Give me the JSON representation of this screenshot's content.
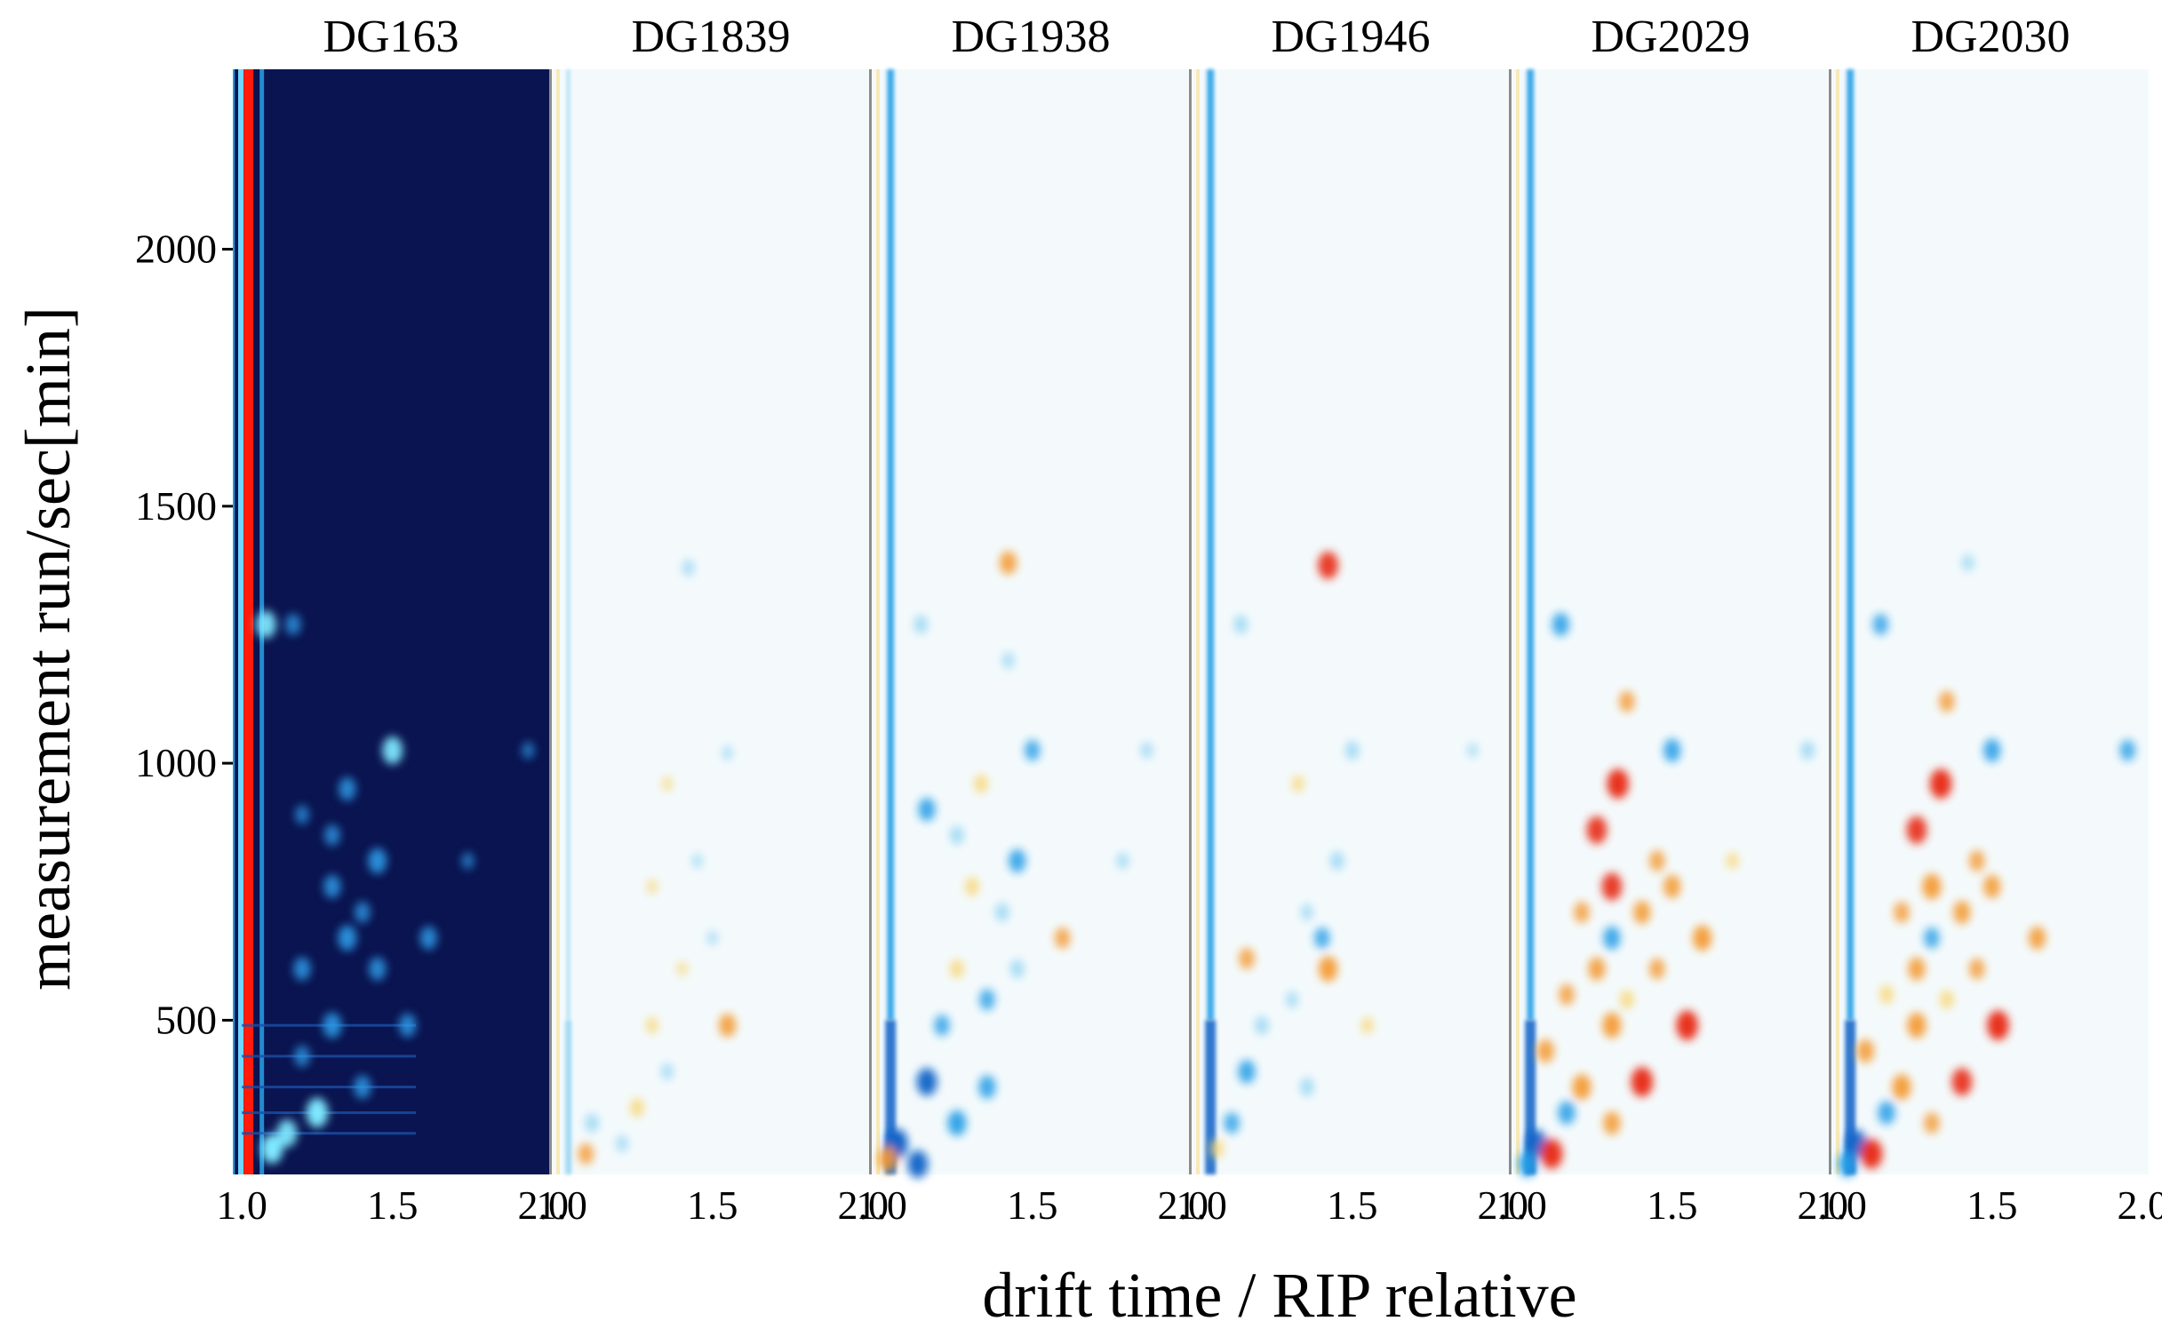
{
  "chart_data": {
    "type": "heatmap",
    "title": "",
    "xlabel": "drift time / RIP relative",
    "ylabel": "measurement run/sec[min]",
    "xlim": [
      0.97,
      2.02
    ],
    "ylim": [
      200,
      2350
    ],
    "x_ticks": [
      1.0,
      1.5,
      2.0
    ],
    "x_tick_labels": [
      "1.0",
      "1.5",
      "2.0"
    ],
    "y_ticks": [
      500,
      1000,
      1500,
      2000
    ],
    "y_tick_labels": [
      "500",
      "1000",
      "1500",
      "2000"
    ],
    "grid": false,
    "legend": "none",
    "reference_panel": "DG163",
    "colors": {
      "reference_background": "#0a1450",
      "reference_rip_line": "#ff1a0a",
      "difference_background": "#f4fafc",
      "higher_than_reference": "#e8321e",
      "lower_than_reference": "#1e9be6"
    },
    "panels": [
      {
        "name": "DG163",
        "mode": "reference",
        "spots": [
          {
            "x": 1.08,
            "y": 1270,
            "v": 0.8
          },
          {
            "x": 1.17,
            "y": 1270,
            "v": 0.5
          },
          {
            "x": 1.5,
            "y": 1025,
            "v": 0.8
          },
          {
            "x": 1.35,
            "y": 950,
            "v": 0.6
          },
          {
            "x": 1.2,
            "y": 900,
            "v": 0.4
          },
          {
            "x": 1.3,
            "y": 860,
            "v": 0.5
          },
          {
            "x": 1.45,
            "y": 810,
            "v": 0.7
          },
          {
            "x": 1.75,
            "y": 810,
            "v": 0.3
          },
          {
            "x": 1.3,
            "y": 760,
            "v": 0.6
          },
          {
            "x": 1.4,
            "y": 710,
            "v": 0.5
          },
          {
            "x": 1.35,
            "y": 660,
            "v": 0.7
          },
          {
            "x": 1.62,
            "y": 660,
            "v": 0.6
          },
          {
            "x": 1.2,
            "y": 600,
            "v": 0.6
          },
          {
            "x": 1.45,
            "y": 600,
            "v": 0.6
          },
          {
            "x": 1.3,
            "y": 490,
            "v": 0.7
          },
          {
            "x": 1.55,
            "y": 490,
            "v": 0.6
          },
          {
            "x": 1.2,
            "y": 430,
            "v": 0.5
          },
          {
            "x": 1.4,
            "y": 370,
            "v": 0.6
          },
          {
            "x": 1.25,
            "y": 320,
            "v": 0.9
          },
          {
            "x": 1.15,
            "y": 280,
            "v": 0.8
          },
          {
            "x": 1.1,
            "y": 250,
            "v": 0.9
          },
          {
            "x": 1.95,
            "y": 1025,
            "v": 0.3
          }
        ]
      },
      {
        "name": "DG1839",
        "mode": "difference",
        "spots": [
          {
            "x": 1.42,
            "y": 1380,
            "v": -0.3
          },
          {
            "x": 1.55,
            "y": 1020,
            "v": -0.2
          },
          {
            "x": 1.35,
            "y": 960,
            "v": 0.2
          },
          {
            "x": 1.45,
            "y": 810,
            "v": -0.2
          },
          {
            "x": 1.3,
            "y": 760,
            "v": 0.2
          },
          {
            "x": 1.5,
            "y": 660,
            "v": -0.2
          },
          {
            "x": 1.4,
            "y": 600,
            "v": 0.2
          },
          {
            "x": 1.55,
            "y": 490,
            "v": 0.6
          },
          {
            "x": 1.3,
            "y": 490,
            "v": 0.3
          },
          {
            "x": 1.35,
            "y": 400,
            "v": -0.3
          },
          {
            "x": 1.25,
            "y": 330,
            "v": 0.4
          },
          {
            "x": 1.1,
            "y": 300,
            "v": -0.4
          },
          {
            "x": 1.08,
            "y": 240,
            "v": 0.5
          },
          {
            "x": 1.2,
            "y": 260,
            "v": -0.3
          }
        ]
      },
      {
        "name": "DG1938",
        "mode": "difference",
        "spots": [
          {
            "x": 1.42,
            "y": 1390,
            "v": 0.6
          },
          {
            "x": 1.13,
            "y": 1270,
            "v": -0.4
          },
          {
            "x": 1.42,
            "y": 1200,
            "v": -0.3
          },
          {
            "x": 1.5,
            "y": 1025,
            "v": -0.5
          },
          {
            "x": 1.88,
            "y": 1025,
            "v": -0.3
          },
          {
            "x": 1.33,
            "y": 960,
            "v": 0.4
          },
          {
            "x": 1.15,
            "y": 910,
            "v": -0.6
          },
          {
            "x": 1.25,
            "y": 860,
            "v": -0.4
          },
          {
            "x": 1.45,
            "y": 810,
            "v": -0.6
          },
          {
            "x": 1.8,
            "y": 810,
            "v": -0.3
          },
          {
            "x": 1.3,
            "y": 760,
            "v": 0.4
          },
          {
            "x": 1.4,
            "y": 710,
            "v": -0.4
          },
          {
            "x": 1.6,
            "y": 660,
            "v": 0.5
          },
          {
            "x": 1.25,
            "y": 600,
            "v": 0.4
          },
          {
            "x": 1.45,
            "y": 600,
            "v": -0.4
          },
          {
            "x": 1.35,
            "y": 540,
            "v": -0.5
          },
          {
            "x": 1.2,
            "y": 490,
            "v": -0.5
          },
          {
            "x": 1.15,
            "y": 380,
            "v": -0.8
          },
          {
            "x": 1.35,
            "y": 370,
            "v": -0.6
          },
          {
            "x": 1.25,
            "y": 300,
            "v": -0.7
          },
          {
            "x": 1.05,
            "y": 260,
            "v": -0.9
          },
          {
            "x": 1.02,
            "y": 230,
            "v": 0.7
          },
          {
            "x": 1.12,
            "y": 220,
            "v": -0.8
          }
        ]
      },
      {
        "name": "DG1946",
        "mode": "difference",
        "spots": [
          {
            "x": 1.42,
            "y": 1385,
            "v": 0.8
          },
          {
            "x": 1.13,
            "y": 1270,
            "v": -0.4
          },
          {
            "x": 1.5,
            "y": 1025,
            "v": -0.4
          },
          {
            "x": 1.9,
            "y": 1025,
            "v": -0.2
          },
          {
            "x": 1.32,
            "y": 960,
            "v": 0.3
          },
          {
            "x": 1.45,
            "y": 810,
            "v": -0.4
          },
          {
            "x": 1.35,
            "y": 710,
            "v": -0.3
          },
          {
            "x": 1.4,
            "y": 660,
            "v": -0.5
          },
          {
            "x": 1.15,
            "y": 620,
            "v": 0.5
          },
          {
            "x": 1.42,
            "y": 600,
            "v": 0.7
          },
          {
            "x": 1.3,
            "y": 540,
            "v": -0.3
          },
          {
            "x": 1.55,
            "y": 490,
            "v": 0.3
          },
          {
            "x": 1.2,
            "y": 490,
            "v": -0.4
          },
          {
            "x": 1.15,
            "y": 400,
            "v": -0.6
          },
          {
            "x": 1.35,
            "y": 370,
            "v": -0.4
          },
          {
            "x": 1.1,
            "y": 300,
            "v": -0.5
          },
          {
            "x": 1.05,
            "y": 250,
            "v": 0.4
          }
        ]
      },
      {
        "name": "DG2029",
        "mode": "difference",
        "spots": [
          {
            "x": 1.13,
            "y": 1270,
            "v": -0.6
          },
          {
            "x": 1.35,
            "y": 1120,
            "v": 0.5
          },
          {
            "x": 1.5,
            "y": 1025,
            "v": -0.6
          },
          {
            "x": 1.95,
            "y": 1025,
            "v": -0.4
          },
          {
            "x": 1.32,
            "y": 960,
            "v": 0.9
          },
          {
            "x": 1.25,
            "y": 870,
            "v": 0.8
          },
          {
            "x": 1.45,
            "y": 810,
            "v": 0.5
          },
          {
            "x": 1.7,
            "y": 810,
            "v": 0.3
          },
          {
            "x": 1.3,
            "y": 760,
            "v": 0.8
          },
          {
            "x": 1.5,
            "y": 760,
            "v": 0.6
          },
          {
            "x": 1.2,
            "y": 710,
            "v": 0.5
          },
          {
            "x": 1.4,
            "y": 710,
            "v": 0.6
          },
          {
            "x": 1.3,
            "y": 660,
            "v": -0.6
          },
          {
            "x": 1.6,
            "y": 660,
            "v": 0.7
          },
          {
            "x": 1.25,
            "y": 600,
            "v": 0.6
          },
          {
            "x": 1.45,
            "y": 600,
            "v": 0.5
          },
          {
            "x": 1.15,
            "y": 550,
            "v": 0.5
          },
          {
            "x": 1.35,
            "y": 540,
            "v": 0.4
          },
          {
            "x": 1.55,
            "y": 490,
            "v": 0.9
          },
          {
            "x": 1.3,
            "y": 490,
            "v": 0.7
          },
          {
            "x": 1.08,
            "y": 440,
            "v": 0.6
          },
          {
            "x": 1.4,
            "y": 380,
            "v": 0.9
          },
          {
            "x": 1.2,
            "y": 370,
            "v": 0.7
          },
          {
            "x": 1.15,
            "y": 320,
            "v": -0.6
          },
          {
            "x": 1.3,
            "y": 300,
            "v": 0.6
          },
          {
            "x": 1.05,
            "y": 260,
            "v": -0.8
          },
          {
            "x": 1.1,
            "y": 240,
            "v": 0.9
          },
          {
            "x": 1.02,
            "y": 220,
            "v": -0.7
          }
        ]
      },
      {
        "name": "DG2030",
        "mode": "difference",
        "spots": [
          {
            "x": 1.42,
            "y": 1390,
            "v": -0.3
          },
          {
            "x": 1.13,
            "y": 1270,
            "v": -0.5
          },
          {
            "x": 1.35,
            "y": 1120,
            "v": 0.5
          },
          {
            "x": 1.5,
            "y": 1025,
            "v": -0.6
          },
          {
            "x": 1.95,
            "y": 1025,
            "v": -0.5
          },
          {
            "x": 1.33,
            "y": 960,
            "v": 0.9
          },
          {
            "x": 1.25,
            "y": 870,
            "v": 0.8
          },
          {
            "x": 1.45,
            "y": 810,
            "v": 0.5
          },
          {
            "x": 1.3,
            "y": 760,
            "v": 0.7
          },
          {
            "x": 1.5,
            "y": 760,
            "v": 0.6
          },
          {
            "x": 1.2,
            "y": 710,
            "v": 0.5
          },
          {
            "x": 1.4,
            "y": 710,
            "v": 0.6
          },
          {
            "x": 1.3,
            "y": 660,
            "v": -0.5
          },
          {
            "x": 1.65,
            "y": 660,
            "v": 0.6
          },
          {
            "x": 1.25,
            "y": 600,
            "v": 0.6
          },
          {
            "x": 1.45,
            "y": 600,
            "v": 0.5
          },
          {
            "x": 1.15,
            "y": 550,
            "v": 0.4
          },
          {
            "x": 1.35,
            "y": 540,
            "v": 0.4
          },
          {
            "x": 1.52,
            "y": 490,
            "v": 0.9
          },
          {
            "x": 1.25,
            "y": 490,
            "v": 0.7
          },
          {
            "x": 1.08,
            "y": 440,
            "v": 0.6
          },
          {
            "x": 1.4,
            "y": 380,
            "v": 0.8
          },
          {
            "x": 1.2,
            "y": 370,
            "v": 0.7
          },
          {
            "x": 1.15,
            "y": 320,
            "v": -0.6
          },
          {
            "x": 1.3,
            "y": 300,
            "v": 0.5
          },
          {
            "x": 1.05,
            "y": 260,
            "v": -0.8
          },
          {
            "x": 1.1,
            "y": 240,
            "v": 0.9
          },
          {
            "x": 1.02,
            "y": 220,
            "v": -0.7
          }
        ]
      }
    ]
  }
}
